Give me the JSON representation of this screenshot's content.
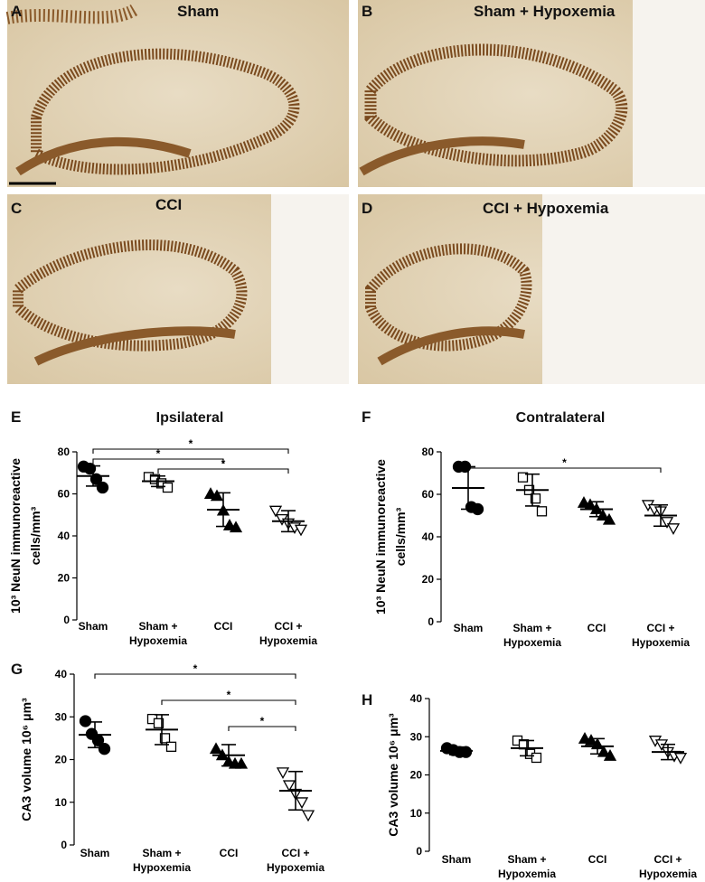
{
  "panels": [
    {
      "letter": "A",
      "label": "Sham"
    },
    {
      "letter": "B",
      "label": "Sham + Hypoxemia"
    },
    {
      "letter": "C",
      "label": "CCI"
    },
    {
      "letter": "D",
      "label": "CCI + Hypoxemia"
    }
  ],
  "chart_data": [
    {
      "type": "dot",
      "letter": "E",
      "title": "Ipsilateral",
      "ylabel": [
        "10³ NeuN immunoreactive",
        "cells/mm³"
      ],
      "categories": [
        "Sham",
        "Sham +\nHypoxemia",
        "CCI",
        "CCI +\nHypoxemia"
      ],
      "markers": [
        "circle",
        "square",
        "triangle",
        "triangle-down"
      ],
      "marker_fill": [
        true,
        false,
        true,
        false
      ],
      "points": [
        [
          73,
          72,
          67,
          63
        ],
        [
          68,
          67,
          65,
          63
        ],
        [
          60,
          59,
          52,
          45,
          44
        ],
        [
          52,
          48,
          46,
          44,
          43
        ]
      ],
      "mean": [
        68.5,
        66,
        52.5,
        47
      ],
      "sd": [
        4.8,
        2.5,
        8,
        5
      ],
      "ylim": [
        0,
        80
      ],
      "yticks": [
        0,
        20,
        40,
        60,
        80
      ],
      "comparisons": [
        {
          "pair": [
            0,
            3
          ],
          "label": "*"
        },
        {
          "pair": [
            0,
            2
          ],
          "label": "*"
        },
        {
          "pair": [
            1,
            3
          ],
          "label": "*"
        }
      ]
    },
    {
      "type": "dot",
      "letter": "F",
      "title": "Contralateral",
      "ylabel": [
        "10³ NeuN immunoreactive",
        "cells/mm³"
      ],
      "categories": [
        "Sham",
        "Sham +\nHypoxemia",
        "CCI",
        "CCI +\nHypoxemia"
      ],
      "markers": [
        "circle",
        "square",
        "triangle",
        "triangle-down"
      ],
      "marker_fill": [
        true,
        false,
        true,
        false
      ],
      "points": [
        [
          73,
          73,
          54,
          53
        ],
        [
          68,
          62,
          58,
          52
        ],
        [
          56,
          55,
          53,
          50,
          48
        ],
        [
          55,
          53,
          52,
          47,
          44
        ]
      ],
      "mean": [
        63,
        62,
        53,
        50
      ],
      "sd": [
        10,
        7.5,
        3.5,
        5
      ],
      "ylim": [
        0,
        80
      ],
      "yticks": [
        0,
        20,
        40,
        60,
        80
      ],
      "comparisons": [
        {
          "pair": [
            0,
            3
          ],
          "label": "*"
        }
      ]
    },
    {
      "type": "dot",
      "letter": "G",
      "ylabel": [
        "CA3 volume 10⁶ μm³"
      ],
      "categories": [
        "Sham",
        "Sham +\nHypoxemia",
        "CCI",
        "CCI +\nHypoxemia"
      ],
      "markers": [
        "circle",
        "square",
        "triangle",
        "triangle-down"
      ],
      "marker_fill": [
        true,
        false,
        true,
        false
      ],
      "points": [
        [
          29,
          26,
          24.5,
          22.5
        ],
        [
          29.5,
          28.5,
          25,
          23
        ],
        [
          22.5,
          21,
          19.5,
          19,
          19
        ],
        [
          17,
          14,
          12,
          10,
          7
        ]
      ],
      "mean": [
        25.8,
        27,
        21,
        12.7
      ],
      "sd": [
        3,
        3.5,
        2.5,
        4.5
      ],
      "ylim": [
        0,
        40
      ],
      "yticks": [
        0,
        10,
        20,
        30,
        40
      ],
      "comparisons": [
        {
          "pair": [
            0,
            3
          ],
          "label": "*"
        },
        {
          "pair": [
            1,
            3
          ],
          "label": "*"
        },
        {
          "pair": [
            2,
            3
          ],
          "label": "*"
        }
      ]
    },
    {
      "type": "dot",
      "letter": "H",
      "ylabel": [
        "CA3 volume 10⁶ μm³"
      ],
      "categories": [
        "Sham",
        "Sham +\nHypoxemia",
        "CCI",
        "CCI +\nHypoxemia"
      ],
      "markers": [
        "circle",
        "square",
        "triangle",
        "triangle-down"
      ],
      "marker_fill": [
        true,
        false,
        true,
        false
      ],
      "points": [
        [
          27,
          26.5,
          26,
          26
        ],
        [
          29,
          28,
          25.5,
          24.5
        ],
        [
          29.5,
          29,
          28,
          26,
          25
        ],
        [
          29,
          28,
          26,
          25,
          24.5
        ]
      ],
      "mean": [
        26.3,
        27,
        27.5,
        26
      ],
      "sd": [
        1,
        2,
        2,
        2
      ],
      "ylim": [
        0,
        40
      ],
      "yticks": [
        0,
        10,
        20,
        30,
        40
      ],
      "comparisons": []
    }
  ]
}
